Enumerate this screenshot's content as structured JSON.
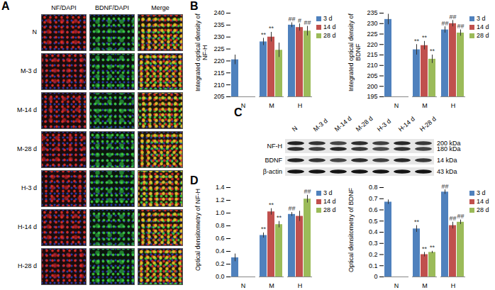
{
  "panel_labels": [
    "A",
    "B",
    "C",
    "D"
  ],
  "panel_A": {
    "columns": [
      "NF/DAPI",
      "BDNF/DAPI",
      "Merge"
    ],
    "rows": [
      "N",
      "M-3 d",
      "M-14 d",
      "M-28 d",
      "H-3 d",
      "H-14 d",
      "H-28 d"
    ]
  },
  "panel_C": {
    "lanes": [
      "N",
      "M-3 d",
      "M-14 d",
      "M-28 d",
      "H-3 d",
      "H-14 d",
      "H-28 d"
    ],
    "bands": [
      {
        "name": "NF-H",
        "sizes": [
          "200 kDa",
          "180 kDa"
        ]
      },
      {
        "name": "BDNF",
        "sizes": [
          "14 kDa"
        ]
      },
      {
        "name": "β-actin",
        "sizes": [
          "43 kDa"
        ]
      }
    ]
  },
  "chart_data": [
    {
      "type": "bar",
      "y_label": "Integrated optical density of NF-H",
      "categories": [
        "N",
        "M",
        "H"
      ],
      "series": [
        {
          "name": "3 d",
          "color": "#4f81bd",
          "values": [
            220.5,
            228,
            235
          ],
          "errors": [
            2,
            1.5,
            1
          ],
          "annotations": [
            null,
            "**",
            "##"
          ]
        },
        {
          "name": "14 d",
          "color": "#c0504d",
          "values": [
            null,
            230,
            234
          ],
          "errors": [
            null,
            2,
            1.5
          ],
          "annotations": [
            null,
            "**",
            "#"
          ]
        },
        {
          "name": "28 d",
          "color": "#9bbb59",
          "values": [
            null,
            224.5,
            232.5
          ],
          "errors": [
            null,
            3,
            2
          ],
          "annotations": [
            null,
            null,
            "##"
          ]
        }
      ],
      "ylim": [
        205,
        240
      ],
      "yticks": [
        205,
        210,
        215,
        220,
        225,
        230,
        235,
        240
      ],
      "legend": "right"
    },
    {
      "type": "bar",
      "y_label": "Integrated optical density of BDNF",
      "categories": [
        "N",
        "M",
        "H"
      ],
      "series": [
        {
          "name": "3 d",
          "color": "#4f81bd",
          "values": [
            232,
            217.5,
            227
          ],
          "errors": [
            2.5,
            2.5,
            1.5
          ],
          "annotations": [
            null,
            "**",
            "##"
          ]
        },
        {
          "name": "14 d",
          "color": "#c0504d",
          "values": [
            null,
            219.5,
            230
          ],
          "errors": [
            null,
            2,
            1.5
          ],
          "annotations": [
            null,
            "**",
            "##"
          ]
        },
        {
          "name": "28 d",
          "color": "#9bbb59",
          "values": [
            null,
            213,
            225.5
          ],
          "errors": [
            null,
            2,
            1.5
          ],
          "annotations": [
            null,
            "**",
            "##"
          ]
        }
      ],
      "ylim": [
        195,
        235
      ],
      "yticks": [
        195,
        200,
        205,
        210,
        215,
        220,
        225,
        230,
        235
      ],
      "legend": "right"
    },
    {
      "type": "bar",
      "y_label": "Optical densitometry of NF-H",
      "categories": [
        "N",
        "M",
        "H"
      ],
      "series": [
        {
          "name": "3 d",
          "color": "#4f81bd",
          "values": [
            0.3,
            0.65,
            0.98
          ],
          "errors": [
            0.06,
            0.04,
            0.03
          ],
          "annotations": [
            null,
            "**",
            "##"
          ]
        },
        {
          "name": "14 d",
          "color": "#c0504d",
          "values": [
            null,
            1.02,
            0.95
          ],
          "errors": [
            null,
            0.05,
            0.08
          ],
          "annotations": [
            null,
            "**",
            null
          ]
        },
        {
          "name": "28 d",
          "color": "#9bbb59",
          "values": [
            null,
            0.82,
            1.22
          ],
          "errors": [
            null,
            0.05,
            0.06
          ],
          "annotations": [
            null,
            "**",
            "##"
          ]
        }
      ],
      "ylim": [
        0,
        1.4
      ],
      "yticks": [
        {
          "value": 0,
          "label": "0.0"
        },
        0.2,
        0.4,
        0.6,
        0.8,
        {
          "value": 1,
          "label": "1.0"
        },
        1.2,
        1.4
      ],
      "legend": "right"
    },
    {
      "type": "bar",
      "y_label": "Optical densitometry of BDNF",
      "categories": [
        "N",
        "M",
        "H"
      ],
      "series": [
        {
          "name": "3 d",
          "color": "#4f81bd",
          "values": [
            0.67,
            0.43,
            0.76
          ],
          "errors": [
            0.02,
            0.03,
            0.02
          ],
          "annotations": [
            null,
            "**",
            "##"
          ]
        },
        {
          "name": "14 d",
          "color": "#c0504d",
          "values": [
            null,
            0.2,
            0.46
          ],
          "errors": [
            null,
            0.02,
            0.03
          ],
          "annotations": [
            null,
            "**",
            "##"
          ]
        },
        {
          "name": "28 d",
          "color": "#9bbb59",
          "values": [
            null,
            0.22,
            0.49
          ],
          "errors": [
            null,
            0.01,
            0.02
          ],
          "annotations": [
            null,
            "**",
            "##"
          ]
        }
      ],
      "ylim": [
        0,
        0.8
      ],
      "yticks": [
        0,
        0.1,
        0.2,
        0.3,
        0.4,
        0.5,
        0.6,
        0.7,
        0.8
      ],
      "legend": "right"
    }
  ]
}
